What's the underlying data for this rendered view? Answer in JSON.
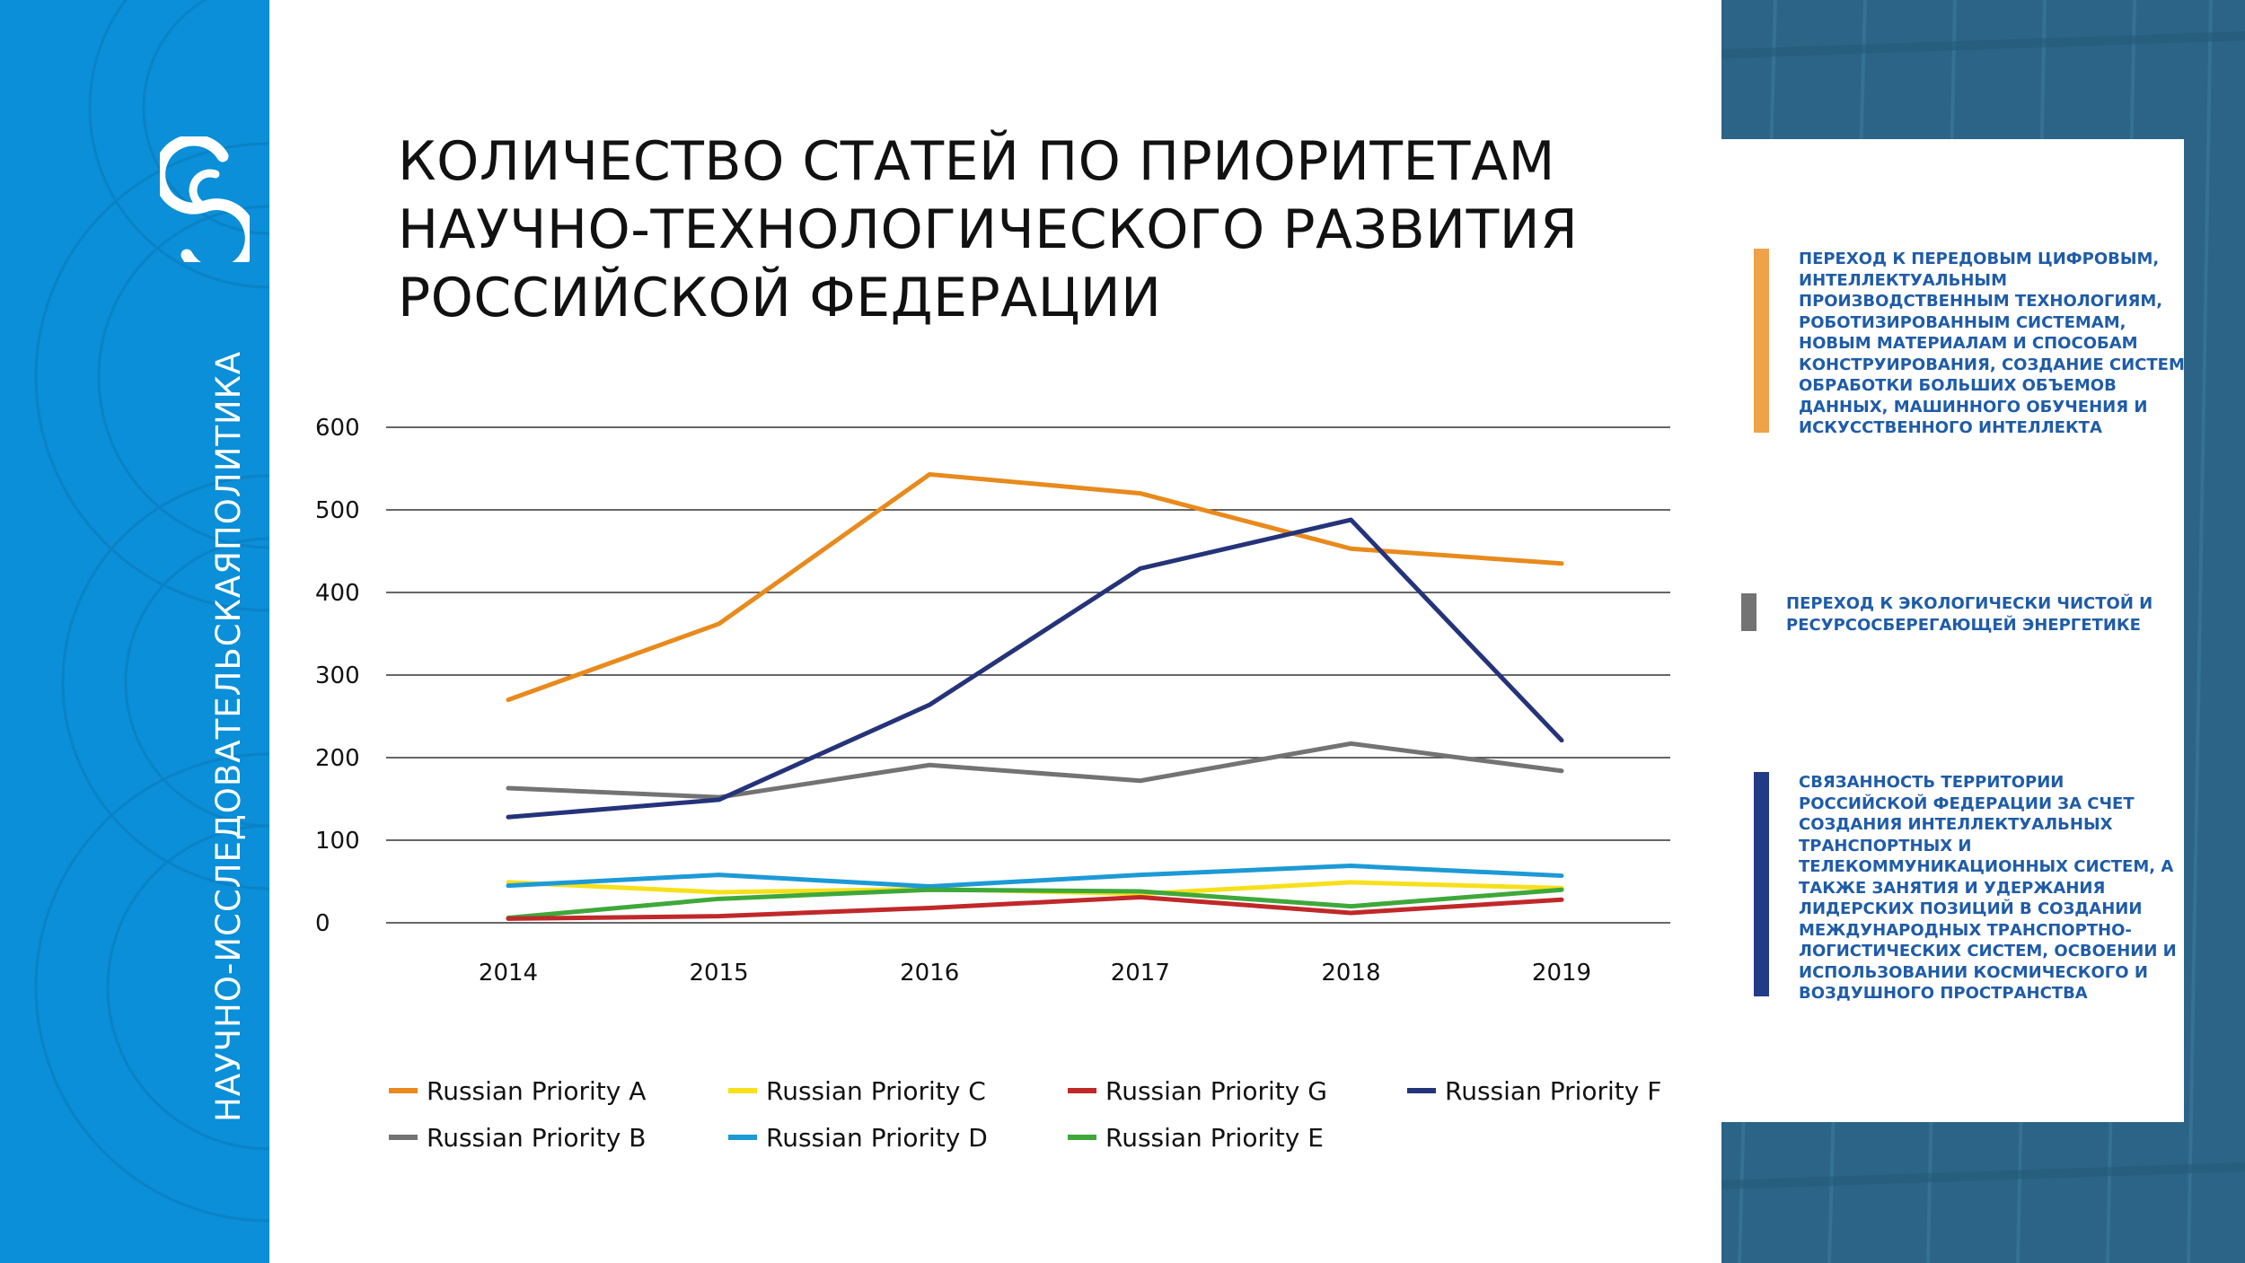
{
  "sidebar": {
    "vertical_text": "НАУЧНО-ИССЛЕДОВАТЕЛЬСКАЯПОЛИТИКА",
    "logo_icon": "s-logo-icon"
  },
  "title_lines": [
    "КОЛИЧЕСТВО СТАТЕЙ ПО ПРИОРИТЕТАМ",
    "НАУЧНО-ТЕХНОЛОГИЧЕСКОГО РАЗВИТИЯ",
    "РОССИЙСКОЙ ФЕДЕРАЦИИ"
  ],
  "colors": {
    "left_band": "#0a8fd8",
    "right_band": "#2b6486",
    "legend_text": "#1f5ca8"
  },
  "side_legend": [
    {
      "color": "#f0a24a",
      "text": "ПЕРЕХОД К ПЕРЕДОВЫМ ЦИФРОВЫМ, ИНТЕЛЛЕКТУАЛЬНЫМ ПРОИЗВОДСТВЕННЫМ ТЕХНОЛОГИЯМ, РОБОТИЗИРОВАННЫМ СИСТЕМАМ, НОВЫМ МАТЕРИАЛАМ И СПОСОБАМ КОНСТРУИРОВАНИЯ, СОЗДАНИЕ СИСТЕМ ОБРАБОТКИ БОЛЬШИХ ОБЪЕМОВ ДАННЫХ, МАШИННОГО ОБУЧЕНИЯ И ИСКУССТВЕННОГО ИНТЕЛЛЕКТА"
    },
    {
      "color": "#737373",
      "text": "ПЕРЕХОД К ЭКОЛОГИЧЕСКИ ЧИСТОЙ И РЕСУРСОСБЕРЕГАЮЩЕЙ ЭНЕРГЕТИКЕ"
    },
    {
      "color": "#233a86",
      "text": "СВЯЗАННОСТЬ ТЕРРИТОРИИ РОССИЙСКОЙ ФЕДЕРАЦИИ ЗА СЧЕТ СОЗДАНИЯ ИНТЕЛЛЕКТУАЛЬНЫХ ТРАНСПОРТНЫХ И ТЕЛЕКОММУНИКАЦИОННЫХ СИСТЕМ, А ТАКЖЕ ЗАНЯТИЯ И УДЕРЖАНИЯ ЛИДЕРСКИХ ПОЗИЦИЙ В СОЗДАНИИ МЕЖДУНАРОДНЫХ ТРАНСПОРТНО-ЛОГИСТИЧЕСКИХ СИСТЕМ, ОСВОЕНИИ И ИСПОЛЬЗОВАНИИ КОСМИЧЕСКОГО И ВОЗДУШНОГО ПРОСТРАНСТВА"
    }
  ],
  "chart_data": {
    "type": "line",
    "x": [
      "2014",
      "2015",
      "2016",
      "2017",
      "2018",
      "2019"
    ],
    "ylim": [
      0,
      600
    ],
    "yticks": [
      0,
      100,
      200,
      300,
      400,
      500,
      600
    ],
    "grid": true,
    "legend_position": "bottom",
    "series": [
      {
        "name": "Russian Priority A",
        "color": "#e88a1c",
        "values": [
          270,
          362,
          543,
          520,
          453,
          435
        ]
      },
      {
        "name": "Russian Priority C",
        "color": "#f7e01a",
        "values": [
          49,
          37,
          41,
          35,
          49,
          42
        ]
      },
      {
        "name": "Russian Priority G",
        "color": "#c0282a",
        "values": [
          5,
          8,
          18,
          31,
          12,
          28
        ]
      },
      {
        "name": "Russian Priority F",
        "color": "#25337a",
        "values": [
          128,
          149,
          264,
          429,
          488,
          221
        ]
      },
      {
        "name": "Russian Priority B",
        "color": "#737373",
        "values": [
          163,
          152,
          191,
          172,
          217,
          184
        ]
      },
      {
        "name": "Russian Priority D",
        "color": "#1c9ad6",
        "values": [
          45,
          58,
          44,
          58,
          69,
          57
        ]
      },
      {
        "name": "Russian Priority E",
        "color": "#3ea83a",
        "values": [
          6,
          29,
          40,
          38,
          20,
          40
        ]
      }
    ]
  }
}
